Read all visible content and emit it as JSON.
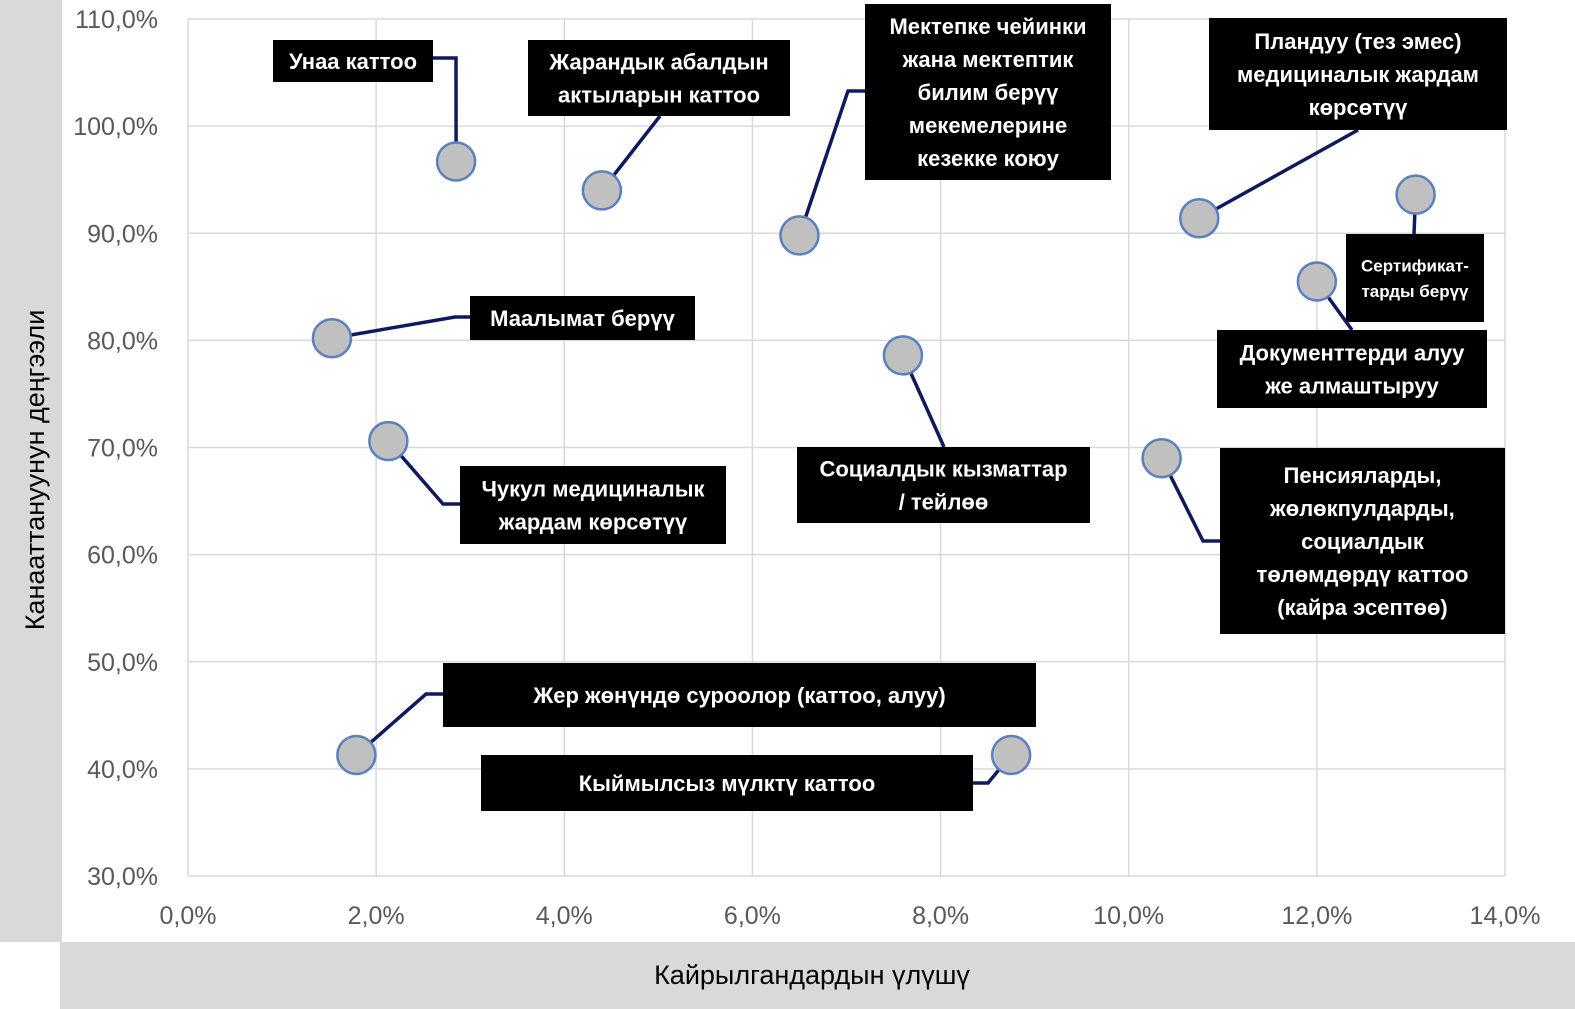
{
  "chart_data": {
    "type": "scatter",
    "xlabel": "Кайрылгандардын үлүшү",
    "ylabel": "Канааттануунун деңгээли",
    "xlim": [
      0,
      14
    ],
    "ylim": [
      30,
      110
    ],
    "x_ticks": [
      "0,0%",
      "2,0%",
      "4,0%",
      "6,0%",
      "8,0%",
      "10,0%",
      "12,0%",
      "14,0%"
    ],
    "y_ticks": [
      "30,0%",
      "40,0%",
      "50,0%",
      "60,0%",
      "70,0%",
      "80,0%",
      "90,0%",
      "100,0%",
      "110,0%"
    ],
    "grid": true,
    "colors": {
      "marker_fill": "#c0c0c0",
      "marker_stroke": "#5b7fbf",
      "leader": "#0e1a5c",
      "label_bg": "#000000",
      "label_text": "#ffffff",
      "axis_band": "#d9d9d9"
    },
    "points": [
      {
        "label": "Унаа каттоо",
        "x": 2.85,
        "y": 96.7
      },
      {
        "label": "Жарандык абалдын актыларын каттоо",
        "x": 4.4,
        "y": 94.0
      },
      {
        "label": "Мектепке чейинки жана мектептик билим берүү мекемелерине кезекке коюу",
        "x": 6.5,
        "y": 89.8
      },
      {
        "label": "Пландуу (тез эмес) медициналык жардам көрсөтүү",
        "x": 10.75,
        "y": 91.4
      },
      {
        "label": "Сертификат-тарды берүү",
        "x": 13.05,
        "y": 93.6
      },
      {
        "label": "Документтерди алуу же алмаштыруу",
        "x": 12.0,
        "y": 85.5
      },
      {
        "label": "Маалымат берүү",
        "x": 1.53,
        "y": 80.2
      },
      {
        "label": "Социалдык кызматтар / тейлөө",
        "x": 7.6,
        "y": 78.6
      },
      {
        "label": "Чукул медициналык жардам көрсөтүү",
        "x": 2.13,
        "y": 70.6
      },
      {
        "label": "Пенсияларды, жөлөкпулдарды, социалдык төлөмдөрдү каттоо (кайра эсептөө)",
        "x": 10.35,
        "y": 69.0
      },
      {
        "label": "Жер жөнүндө суроолор (каттоо, алуу)",
        "x": 1.79,
        "y": 41.3
      },
      {
        "label": "Кыймылсыз мүлктү каттоо",
        "x": 8.75,
        "y": 41.3
      }
    ]
  }
}
